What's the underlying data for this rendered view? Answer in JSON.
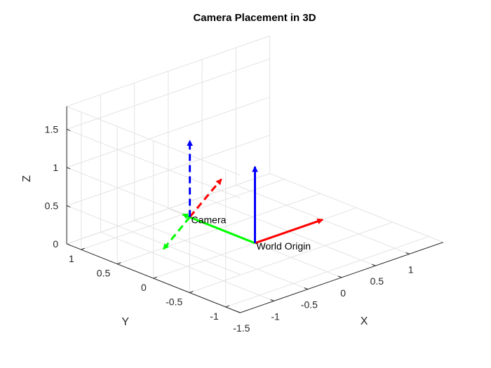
{
  "chart_data": {
    "type": "3d-line",
    "title": "Camera Placement in 3D",
    "xlabel": "X",
    "ylabel": "Y",
    "zlabel": "Z",
    "xlim": [
      -1.5,
      1.5
    ],
    "ylim": [
      -1.2,
      1.2
    ],
    "zlim": [
      0,
      1.8
    ],
    "xticks": [
      -1.5,
      -1,
      -0.5,
      0,
      0.5,
      1
    ],
    "xtick_labels": [
      "-1.5",
      "-1",
      "-0.5",
      "0",
      "0.5",
      "1"
    ],
    "yticks": [
      -1,
      -0.5,
      0,
      0.5,
      1
    ],
    "ytick_labels": [
      "-1",
      "-0.5",
      "0",
      "0.5",
      "1"
    ],
    "zticks": [
      0,
      0.5,
      1,
      1.5
    ],
    "ztick_labels": [
      "0",
      "0.5",
      "1",
      "1.5"
    ],
    "grid": true,
    "series": [
      {
        "color": "#ff0000",
        "style": "solid",
        "from": [
          0,
          0,
          0
        ],
        "to": [
          1,
          0,
          0
        ]
      },
      {
        "color": "#00ff00",
        "style": "solid",
        "from": [
          0,
          0,
          0
        ],
        "to": [
          0,
          1,
          0
        ]
      },
      {
        "color": "#0000ff",
        "style": "solid",
        "from": [
          0,
          0,
          0
        ],
        "to": [
          0,
          0,
          1
        ]
      },
      {
        "color": "#ff0000",
        "style": "dashed",
        "from": [
          -0.45,
          0.48,
          0.3
        ],
        "to": [
          0.55,
          0.98,
          0.3
        ]
      },
      {
        "color": "#00ff00",
        "style": "dashed",
        "from": [
          -0.45,
          0.48,
          0.3
        ],
        "to": [
          -1.3,
          0.05,
          0.3
        ]
      },
      {
        "color": "#0000ff",
        "style": "dashed",
        "from": [
          -0.45,
          0.48,
          0.3
        ],
        "to": [
          -0.45,
          0.48,
          1.3
        ]
      }
    ],
    "annotations": [
      {
        "text": "World Origin",
        "at": [
          0,
          0,
          0
        ]
      },
      {
        "text": "Camera",
        "at": [
          -0.45,
          0.48,
          0.3
        ]
      }
    ]
  }
}
